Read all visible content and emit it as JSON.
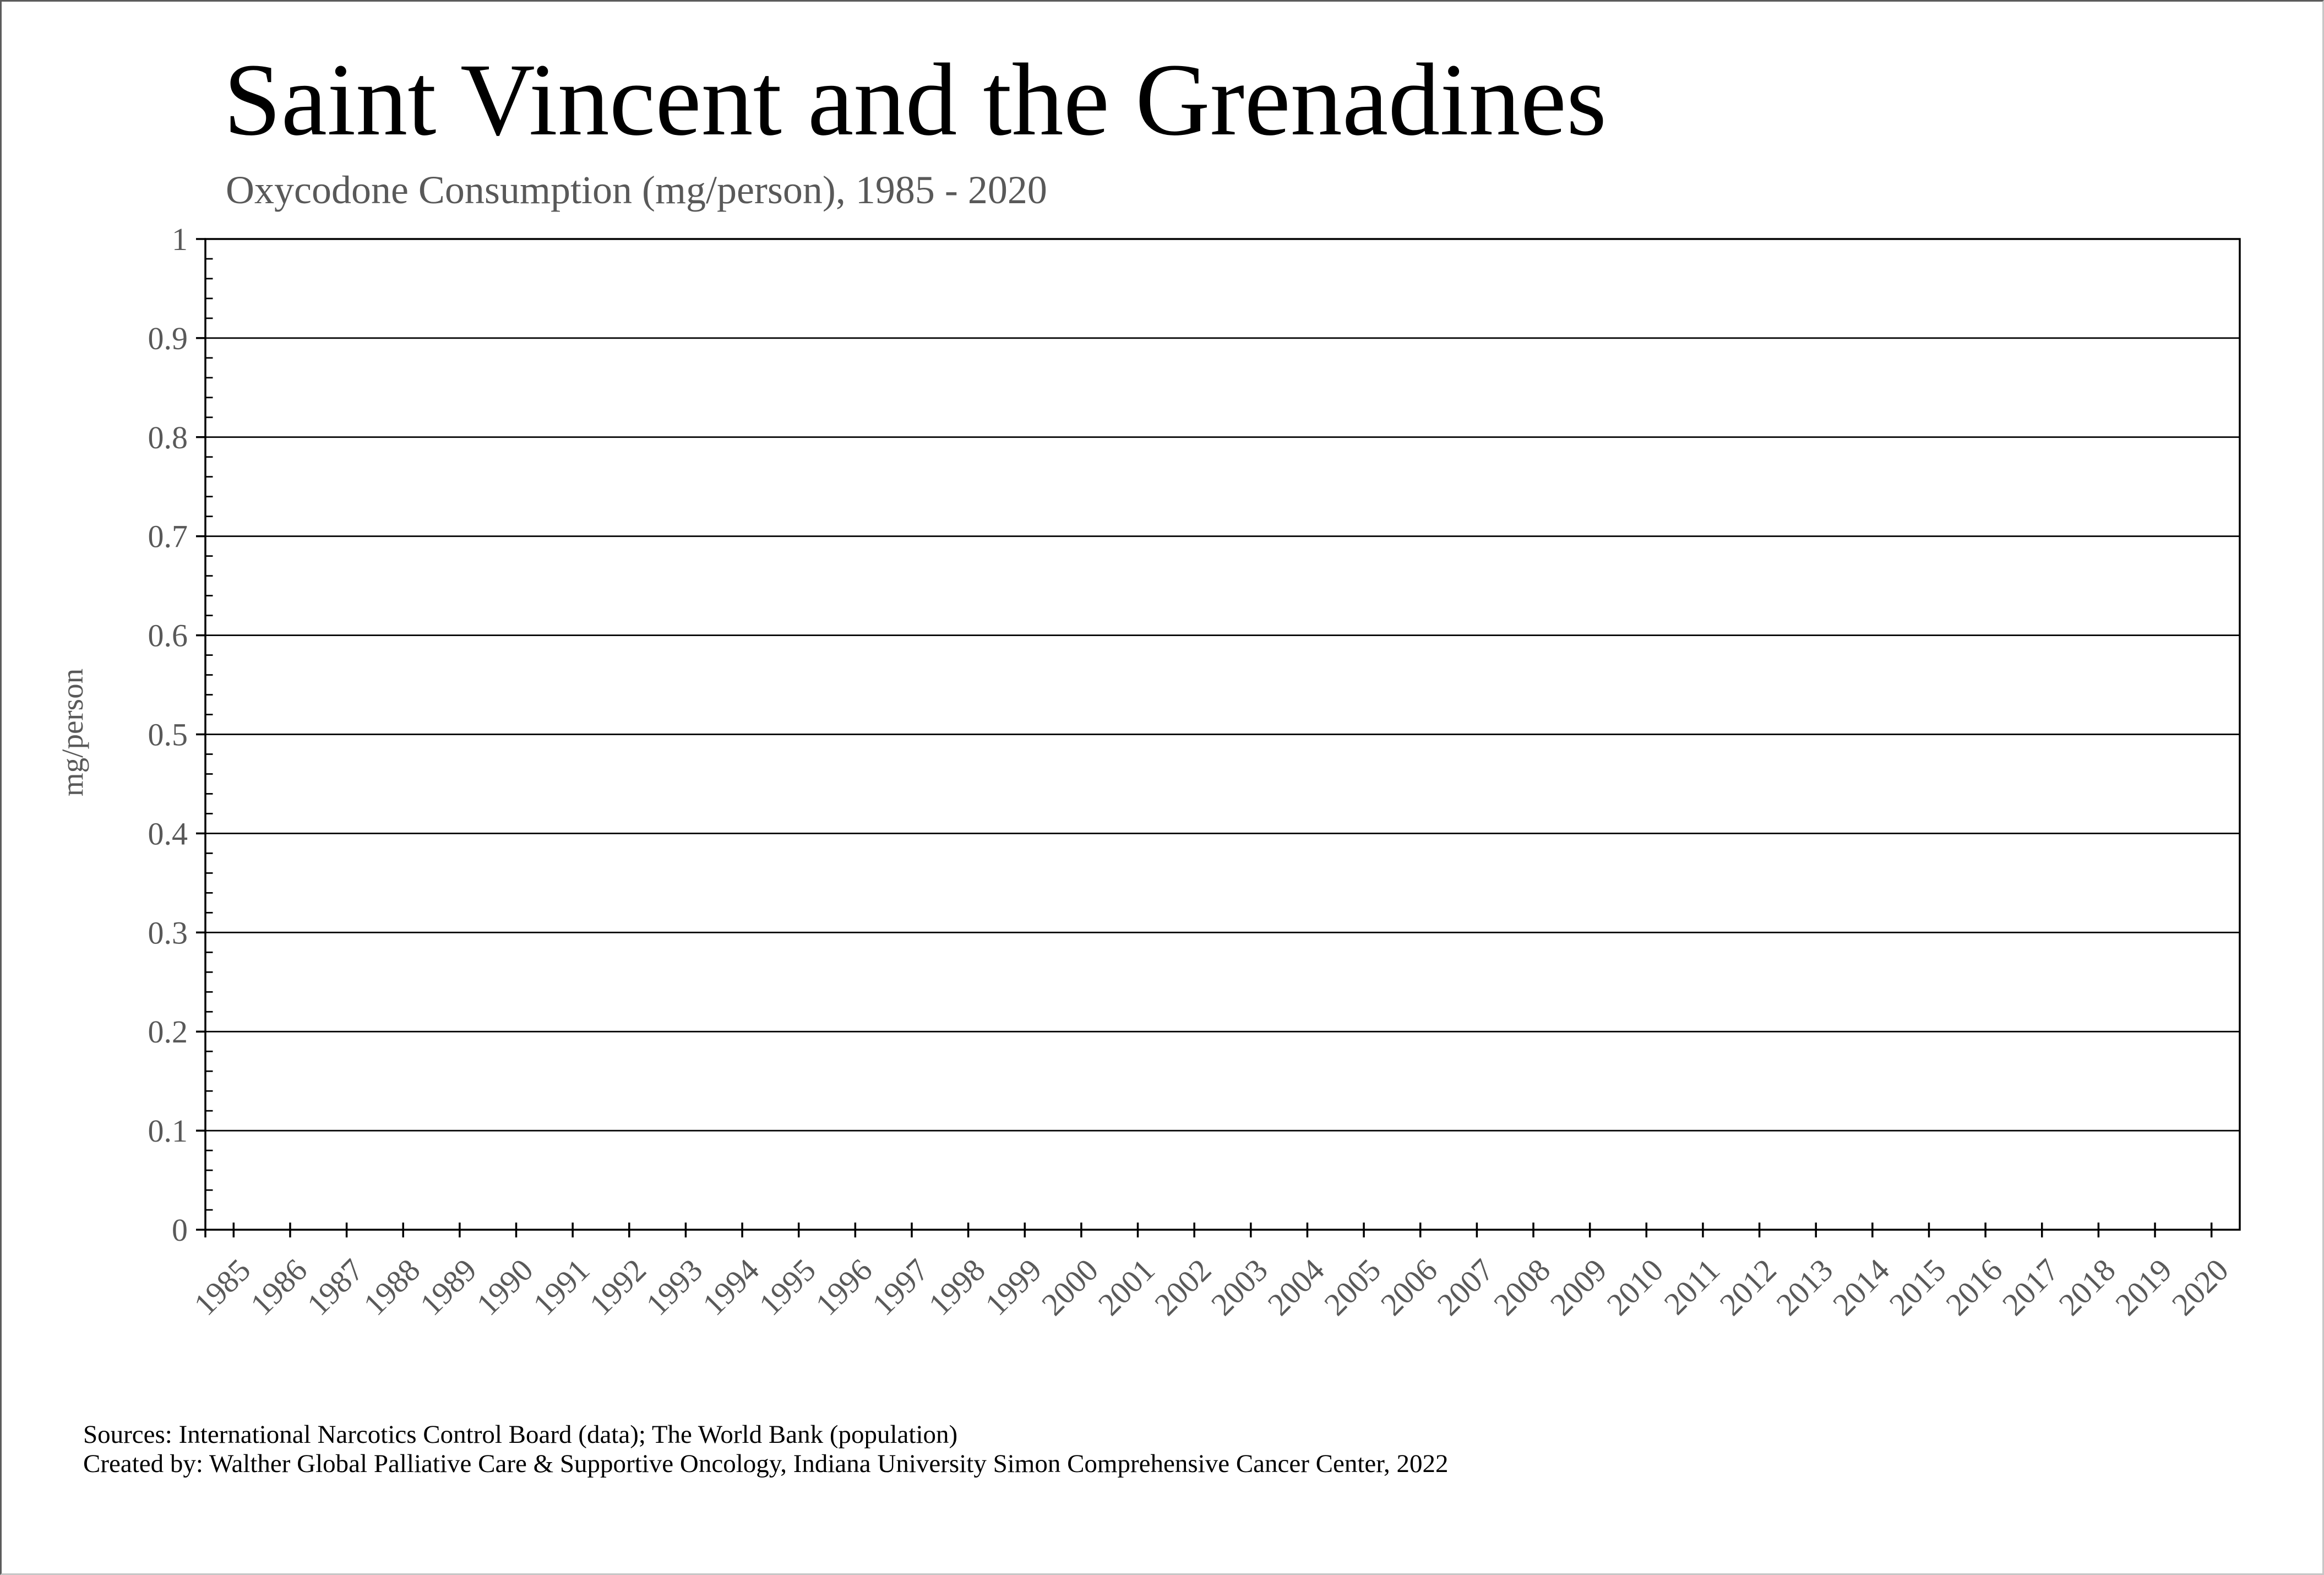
{
  "page": {
    "title": "Saint Vincent and the Grenadines",
    "subtitle": "Oxycodone Consumption (mg/person), 1985 - 2020",
    "footer": {
      "line1": "Sources: International Narcotics Control Board (data); The World Bank (population)",
      "line2": "Created by: Walther Global Palliative Care & Supportive Oncology, Indiana University Simon Comprehensive Cancer Center, 2022"
    },
    "colors": {
      "title_text": "#000000",
      "muted_text": "#595959",
      "axis": "#000000",
      "background": "#ffffff"
    }
  },
  "chart_data": {
    "type": "line",
    "title": "Saint Vincent and the Grenadines",
    "subtitle": "Oxycodone Consumption (mg/person), 1985 - 2020",
    "xlabel": "",
    "ylabel": "mg/person",
    "categories": [
      "1985",
      "1986",
      "1987",
      "1988",
      "1989",
      "1990",
      "1991",
      "1992",
      "1993",
      "1994",
      "1995",
      "1996",
      "1997",
      "1998",
      "1999",
      "2000",
      "2001",
      "2002",
      "2003",
      "2004",
      "2005",
      "2006",
      "2007",
      "2008",
      "2009",
      "2010",
      "2011",
      "2012",
      "2013",
      "2014",
      "2015",
      "2016",
      "2017",
      "2018",
      "2019",
      "2020"
    ],
    "series": [],
    "ylim": [
      0,
      1
    ],
    "y_major_step": 0.1,
    "y_minor_step": 0.02,
    "y_tick_labels": [
      "0",
      "0.1",
      "0.2",
      "0.3",
      "0.4",
      "0.5",
      "0.6",
      "0.7",
      "0.8",
      "0.9",
      "1"
    ],
    "grid": "horizontal-major",
    "legend": "none",
    "plot_area_empty": true
  }
}
